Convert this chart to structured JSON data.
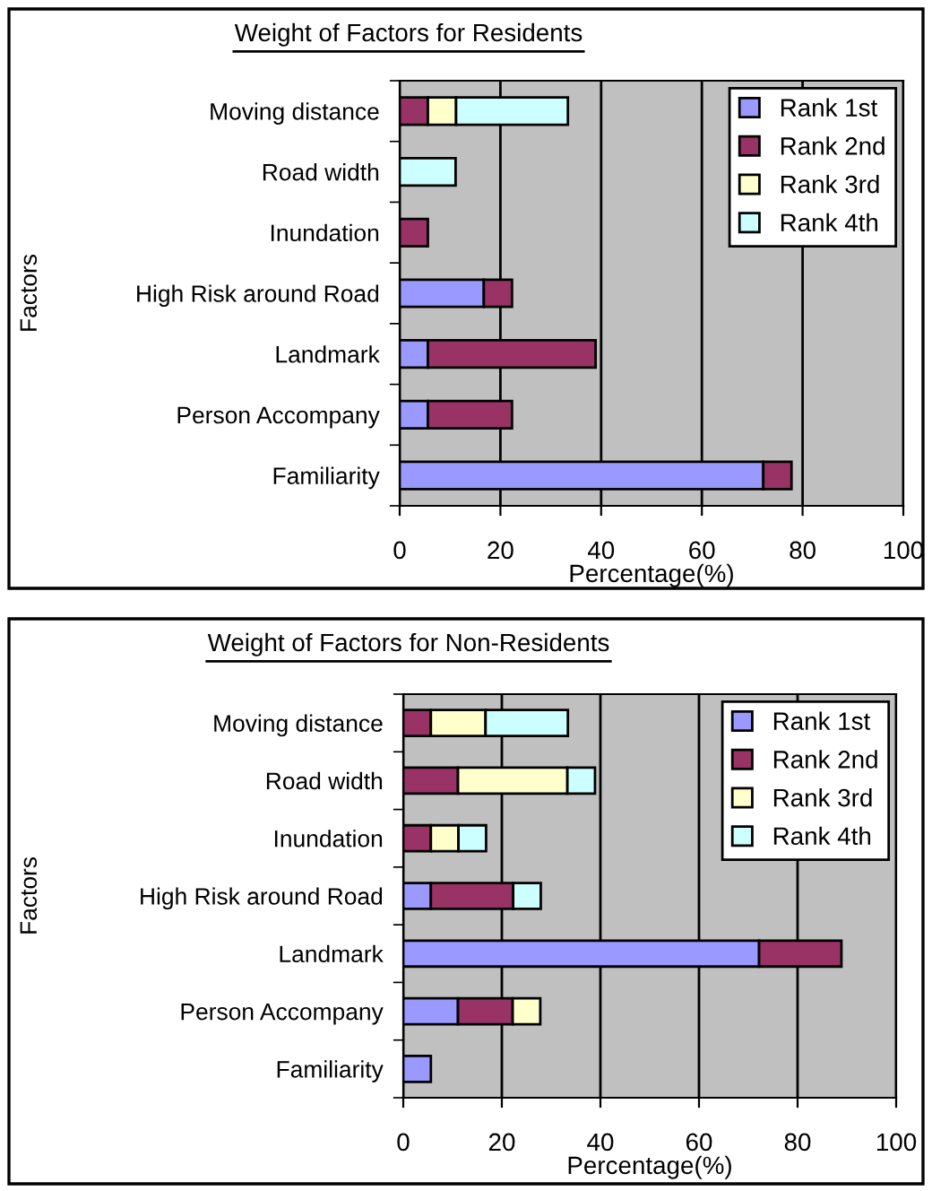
{
  "chart_data": [
    {
      "type": "bar",
      "title": "Weight of Factors for Residents",
      "xlabel": "Percentage(%)",
      "ylabel": "Factors",
      "orientation": "horizontal",
      "stacked": true,
      "categories": [
        "Moving distance",
        "Road width",
        "Inundation",
        "High Risk around Road",
        "Landmark",
        "Person Accompany",
        "Familiarity"
      ],
      "series": [
        {
          "name": "Rank 1st",
          "color": "#9999ff",
          "values": [
            null,
            null,
            null,
            16.7,
            5.6,
            5.6,
            72.2
          ]
        },
        {
          "name": "Rank 2nd",
          "color": "#993366",
          "values": [
            5.6,
            null,
            5.6,
            5.6,
            33.3,
            16.7,
            5.6
          ]
        },
        {
          "name": "Rank 3rd",
          "color": "#ffffcc",
          "values": [
            5.6,
            null,
            null,
            null,
            null,
            null,
            null
          ]
        },
        {
          "name": "Rank 4th",
          "color": "#ccffff",
          "values": [
            22.2,
            11.1,
            null,
            null,
            null,
            null,
            null
          ]
        }
      ],
      "xlim": [
        0,
        100
      ],
      "xticks": [
        0,
        20,
        40,
        60,
        80,
        100
      ],
      "grid": "x",
      "legend": "top right"
    },
    {
      "type": "bar",
      "title": "Weight of Factors for Non-Residents",
      "xlabel": "Percentage(%)",
      "ylabel": "Factors",
      "orientation": "horizontal",
      "stacked": true,
      "categories": [
        "Moving distance",
        "Road width",
        "Inundation",
        "High Risk around Road",
        "Landmark",
        "Person Accompany",
        "Familiarity"
      ],
      "series": [
        {
          "name": "Rank 1st",
          "color": "#9999ff",
          "values": [
            null,
            null,
            null,
            5.6,
            72.2,
            11.1,
            5.6
          ]
        },
        {
          "name": "Rank 2nd",
          "color": "#993366",
          "values": [
            5.6,
            11.1,
            5.6,
            16.7,
            16.7,
            11.1,
            null
          ]
        },
        {
          "name": "Rank 3rd",
          "color": "#ffffcc",
          "values": [
            11.1,
            22.2,
            5.6,
            null,
            null,
            5.6,
            null
          ]
        },
        {
          "name": "Rank 4th",
          "color": "#ccffff",
          "values": [
            16.7,
            5.6,
            5.6,
            5.6,
            null,
            null,
            null
          ]
        }
      ],
      "xlim": [
        0,
        100
      ],
      "xticks": [
        0,
        20,
        40,
        60,
        80,
        100
      ],
      "grid": "x",
      "legend": "top right"
    }
  ]
}
